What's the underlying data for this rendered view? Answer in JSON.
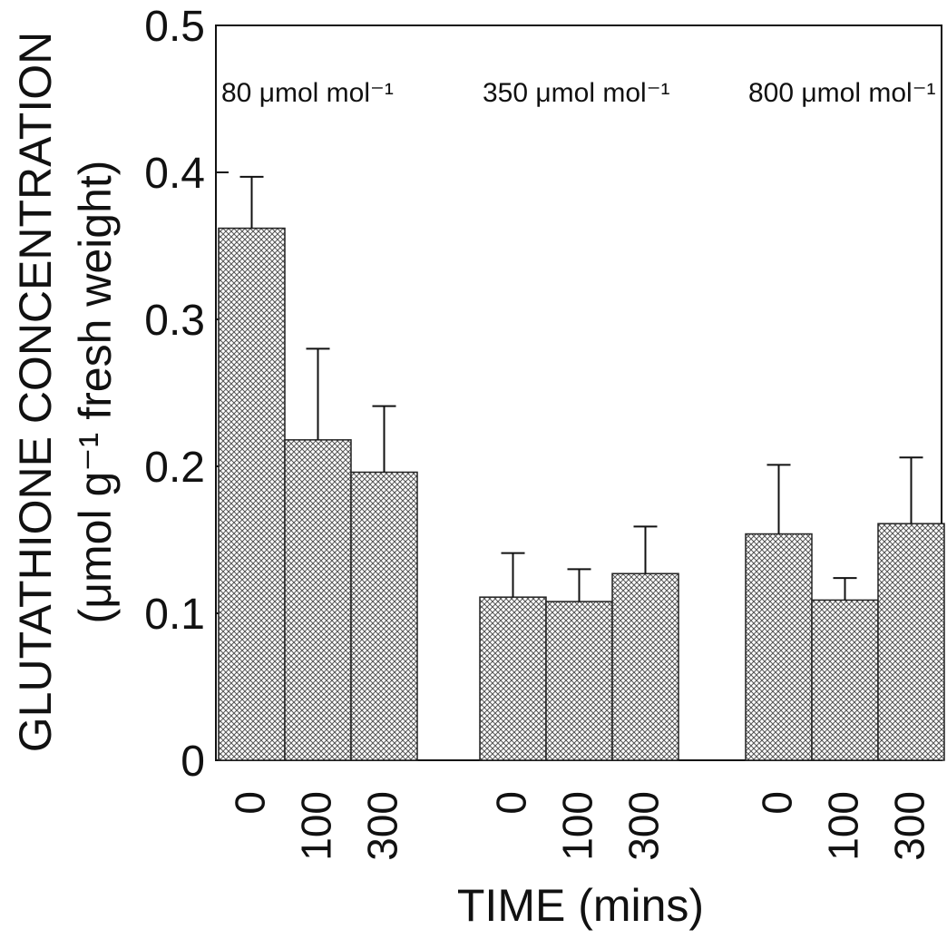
{
  "chart_data": {
    "type": "bar",
    "ylabel_line1": "GLUTATHIONE  CONCENTRATION",
    "ylabel_line2": "(μmol  g⁻¹  fresh  weight)",
    "xlabel": "TIME  (mins)",
    "ylim": [
      0,
      0.5
    ],
    "yticks": [
      "0",
      "0.1",
      "0.2",
      "0.3",
      "0.4",
      "0.5"
    ],
    "grid": false,
    "groups": [
      {
        "label": "80  μmol  mol⁻¹",
        "categories": [
          "0",
          "100",
          "300"
        ],
        "values": [
          0.362,
          0.218,
          0.196
        ],
        "error_upper": [
          0.397,
          0.28,
          0.241
        ]
      },
      {
        "label": "350  μmol  mol⁻¹",
        "categories": [
          "0",
          "100",
          "300"
        ],
        "values": [
          0.111,
          0.108,
          0.127
        ],
        "error_upper": [
          0.141,
          0.13,
          0.159
        ]
      },
      {
        "label": "800  μmol  mol⁻¹",
        "categories": [
          "0",
          "100",
          "300"
        ],
        "values": [
          0.154,
          0.109,
          0.161
        ],
        "error_upper": [
          0.201,
          0.124,
          0.206
        ]
      }
    ]
  }
}
